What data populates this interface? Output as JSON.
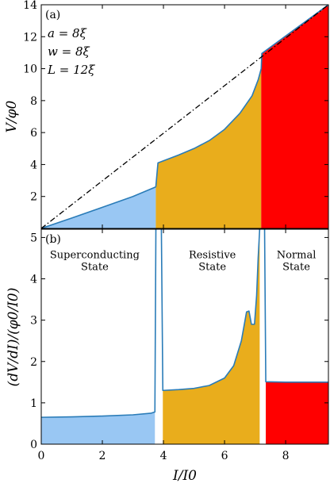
{
  "colors": {
    "superconducting": "#99c7f3",
    "resistive": "#e9ad1c",
    "normal": "#ff0000",
    "curve": "#2a7cb8",
    "dashdot": "#000000"
  },
  "chart_data": [
    {
      "id": "a",
      "type": "area",
      "panel_label": "(a)",
      "annotations": [
        "a = 8ξ",
        "w = 8ξ",
        "L = 12ξ"
      ],
      "xlabel": "",
      "ylabel": "V/φ0",
      "xlim": [
        0,
        9.4
      ],
      "ylim": [
        0,
        14
      ],
      "yticks": [
        2,
        4,
        6,
        8,
        10,
        12,
        14
      ],
      "xticks": [
        0,
        2,
        4,
        6,
        8
      ],
      "reference_line": {
        "style": "dashdot",
        "points": [
          [
            0,
            0
          ],
          [
            9.4,
            14
          ]
        ]
      },
      "series": [
        {
          "region": "superconducting",
          "points": [
            [
              0,
              0
            ],
            [
              1,
              0.65
            ],
            [
              2,
              1.32
            ],
            [
              3,
              2.0
            ],
            [
              3.75,
              2.6
            ]
          ]
        },
        {
          "region": "resistive",
          "points": [
            [
              3.75,
              2.6
            ],
            [
              3.82,
              4.1
            ],
            [
              4.5,
              4.6
            ],
            [
              5,
              5.0
            ],
            [
              5.5,
              5.5
            ],
            [
              6,
              6.2
            ],
            [
              6.5,
              7.2
            ],
            [
              6.9,
              8.3
            ],
            [
              7.1,
              9.3
            ],
            [
              7.2,
              10.0
            ]
          ]
        },
        {
          "region": "normal",
          "points": [
            [
              7.2,
              10.0
            ],
            [
              7.22,
              10.95
            ],
            [
              9.4,
              14.0
            ]
          ]
        }
      ]
    },
    {
      "id": "b",
      "type": "area",
      "panel_label": "(b)",
      "xlabel": "I/I0",
      "ylabel": "(dV/dI)/(φ0/I0)",
      "xlim": [
        0,
        9.4
      ],
      "ylim": [
        0,
        5.2
      ],
      "yticks": [
        0,
        1,
        2,
        3,
        4,
        5
      ],
      "xticks": [
        0,
        2,
        4,
        6,
        8
      ],
      "regions": [
        {
          "name": "superconducting",
          "label_lines": [
            "Superconducting",
            "State"
          ],
          "label_x": 1.75,
          "label_y": 4.5
        },
        {
          "name": "resistive",
          "label_lines": [
            "Resistive",
            "State"
          ],
          "label_x": 5.6,
          "label_y": 4.5
        },
        {
          "name": "normal",
          "label_lines": [
            "Normal",
            "State"
          ],
          "label_x": 8.35,
          "label_y": 4.5
        }
      ],
      "series": [
        {
          "region": "superconducting",
          "points": [
            [
              0,
              0.65
            ],
            [
              1,
              0.66
            ],
            [
              2,
              0.68
            ],
            [
              3,
              0.71
            ],
            [
              3.6,
              0.75
            ],
            [
              3.72,
              0.78
            ]
          ]
        },
        {
          "region": "resistive",
          "points": [
            [
              3.98,
              1.3
            ],
            [
              4.5,
              1.32
            ],
            [
              5,
              1.35
            ],
            [
              5.5,
              1.42
            ],
            [
              6,
              1.6
            ],
            [
              6.3,
              1.9
            ],
            [
              6.55,
              2.5
            ],
            [
              6.72,
              3.2
            ],
            [
              6.8,
              3.22
            ],
            [
              6.88,
              2.9
            ],
            [
              6.98,
              2.9
            ],
            [
              7.05,
              3.6
            ],
            [
              7.1,
              4.5
            ],
            [
              7.15,
              5.2
            ]
          ]
        },
        {
          "region": "normal",
          "points": [
            [
              7.35,
              1.51
            ],
            [
              8,
              1.5
            ],
            [
              9,
              1.5
            ],
            [
              9.4,
              1.5
            ]
          ]
        }
      ],
      "spikes": [
        {
          "x_start": 3.72,
          "x_end": 3.98
        },
        {
          "x_start": 7.15,
          "x_end": 7.35
        }
      ]
    }
  ]
}
